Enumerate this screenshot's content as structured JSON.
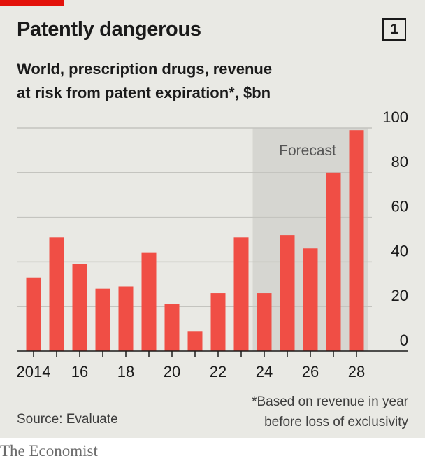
{
  "header": {
    "title": "Patently dangerous",
    "chart_number": "1",
    "subtitle_line1": "World, prescription drugs, revenue",
    "subtitle_line2": "at risk from patent expiration*, $bn"
  },
  "footer": {
    "source": "Source: Evaluate",
    "footnote_line1": "*Based on revenue in year",
    "footnote_line2": "before loss of exclusivity",
    "brand": "The Economist"
  },
  "colors": {
    "bar": "#f04e45",
    "forecast_shade": "#d6d6d1",
    "panel": "#e9e9e4",
    "brand_red": "#e3120b"
  },
  "chart_data": {
    "type": "bar",
    "categories": [
      "2014",
      "2015",
      "2016",
      "2017",
      "2018",
      "2019",
      "2020",
      "2021",
      "2022",
      "2023",
      "2024",
      "2025",
      "2026",
      "2027",
      "2028"
    ],
    "values": [
      33,
      51,
      39,
      28,
      29,
      44,
      21,
      9,
      26,
      51,
      26,
      52,
      46,
      80,
      99
    ],
    "x_tick_labels": [
      "2014",
      "",
      "16",
      "",
      "18",
      "",
      "20",
      "",
      "22",
      "",
      "24",
      "",
      "26",
      "",
      "28"
    ],
    "ylim": [
      0,
      100
    ],
    "y_ticks": [
      0,
      20,
      40,
      60,
      80,
      100
    ],
    "y_axis_side": "right",
    "grid": true,
    "annotation": {
      "label": "Forecast",
      "from_category": "2024",
      "to_category": "2028"
    }
  }
}
